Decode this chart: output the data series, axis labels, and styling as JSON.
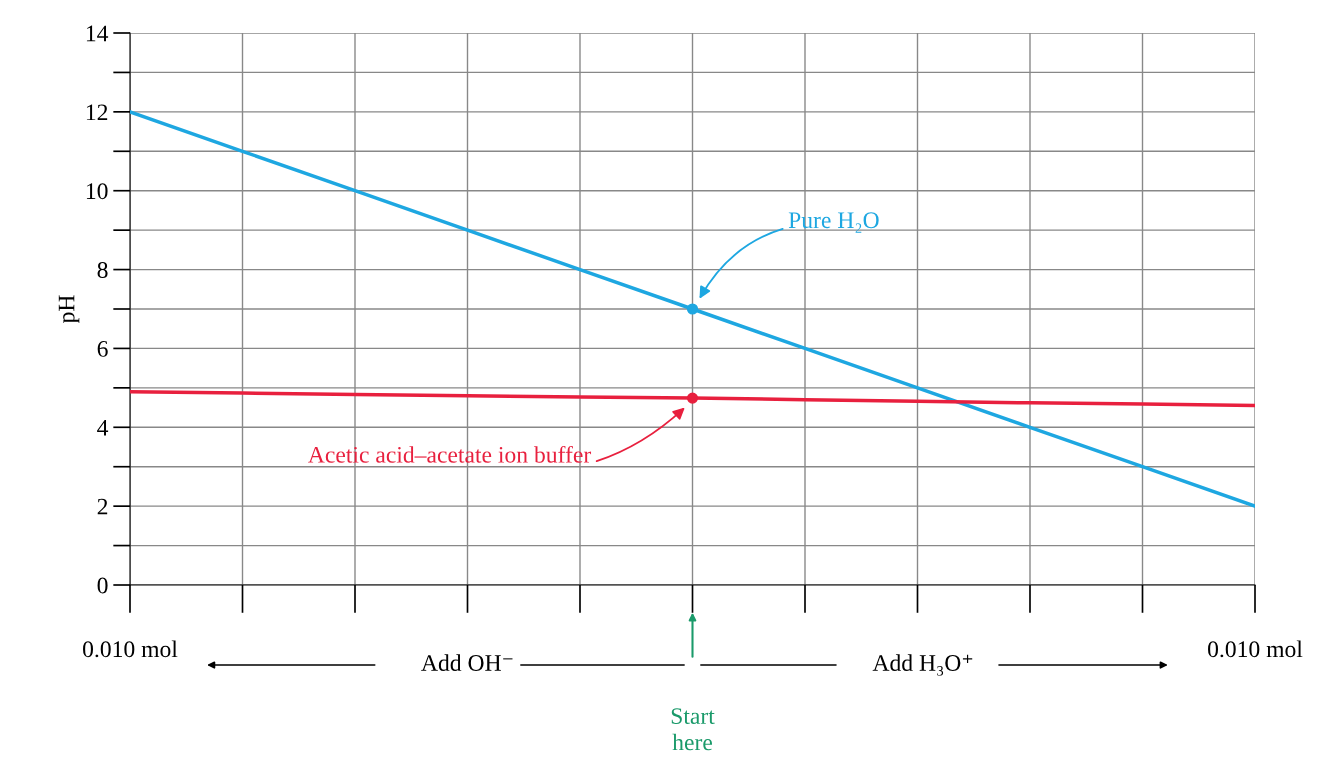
{
  "chart_data": {
    "type": "line",
    "ylabel": "pH",
    "categories": [
      "0.010 mol",
      null,
      null,
      null,
      null,
      null,
      null,
      null,
      null,
      null,
      "0.010 mol"
    ],
    "series": [
      {
        "name": "Pure H₂O",
        "color": "#1ea7e1",
        "values": [
          12,
          11,
          10,
          9,
          8,
          7,
          6,
          5,
          4,
          3,
          2
        ]
      },
      {
        "name": "Acetic acid–acetate ion buffer",
        "color": "#e8203e",
        "values": [
          4.9,
          4.87,
          4.83,
          4.8,
          4.77,
          4.74,
          4.7,
          4.66,
          4.62,
          4.59,
          4.55
        ]
      },
      {
        "type": "scatter",
        "color": "#1ea7e1",
        "marker": "circle",
        "values": [
          null,
          null,
          null,
          null,
          null,
          7,
          null,
          null,
          null,
          null,
          null
        ]
      },
      {
        "type": "scatter",
        "color": "#e8203e",
        "marker": "circle",
        "values": [
          null,
          null,
          null,
          null,
          null,
          4.74,
          null,
          null,
          null,
          null,
          null
        ]
      }
    ],
    "ylim": [
      0,
      14
    ],
    "yticks": [
      0,
      {
        "value": 1,
        "label": null
      },
      2,
      {
        "value": 3,
        "label": null
      },
      4,
      {
        "value": 5,
        "label": null
      },
      6,
      {
        "value": 7,
        "label": null
      },
      8,
      {
        "value": 9,
        "label": null
      },
      10,
      {
        "value": 11,
        "label": null
      },
      12,
      {
        "value": 13,
        "label": null
      },
      14
    ],
    "grid": true,
    "line_style": "solid",
    "annotations": [
      "Add OH⁻",
      "Add H₃O⁺",
      "Start here"
    ]
  }
}
